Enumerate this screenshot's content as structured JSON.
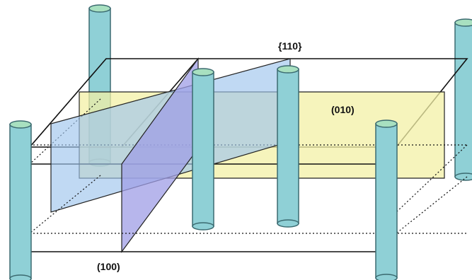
{
  "labels": {
    "plane_110": "{110}",
    "plane_010": "(010)",
    "plane_100": "(100)"
  },
  "colors": {
    "cylinder_fill": "#8fd0d6",
    "cylinder_top": "#a8e0c0",
    "cylinder_stroke": "#3b6a70",
    "plane_010_fill": "#f3f0a6",
    "plane_110_fill": "#9ec4ec",
    "plane_100_fill": "#9f9ee6",
    "edge": "#111111"
  }
}
